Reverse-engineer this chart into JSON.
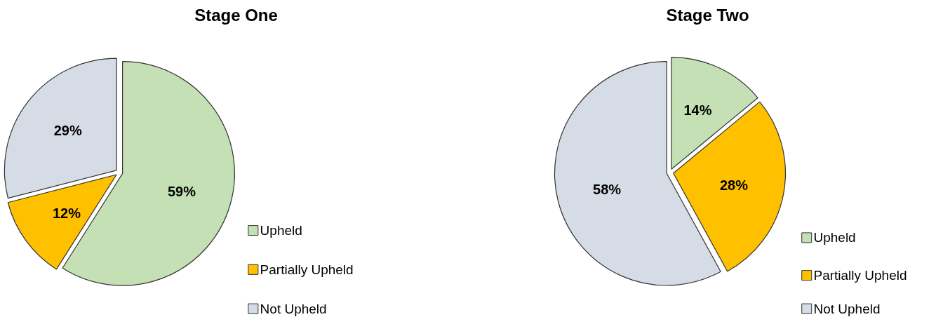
{
  "chart_data": [
    {
      "type": "pie",
      "title": "Stage One",
      "categories": [
        "Upheld",
        "Partially Upheld",
        "Not Upheld"
      ],
      "values": [
        59,
        12,
        29
      ],
      "value_labels": [
        "59%",
        "12%",
        "29%"
      ],
      "colors": [
        "#c5e0b4",
        "#ffc000",
        "#d6dce5"
      ],
      "legend": "bottom right"
    },
    {
      "type": "pie",
      "title": "Stage Two",
      "categories": [
        "Upheld",
        "Partially Upheld",
        "Not Upheld"
      ],
      "values": [
        14,
        28,
        58
      ],
      "value_labels": [
        "14%",
        "28%",
        "58%"
      ],
      "colors": [
        "#c5e0b4",
        "#ffc000",
        "#d6dce5"
      ],
      "legend": "bottom right"
    }
  ]
}
